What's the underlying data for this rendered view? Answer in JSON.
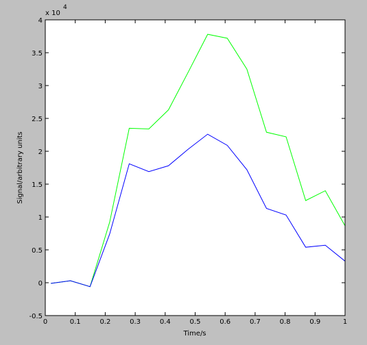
{
  "chart_data": {
    "type": "line",
    "xlabel": "Time/s",
    "ylabel": "Signal/arbitrary units",
    "y_multiplier": {
      "base": "x 10",
      "exponent": "4"
    },
    "x": [
      0.0185,
      0.0839,
      0.1493,
      0.2147,
      0.2801,
      0.3455,
      0.4109,
      0.4763,
      0.5417,
      0.6071,
      0.6725,
      0.7379,
      0.8033,
      0.8687,
      0.9341,
      0.9995
    ],
    "series": [
      {
        "color": "#00ff00",
        "values": [
          -0.01,
          0.03,
          -0.06,
          0.92,
          2.35,
          2.34,
          2.63,
          3.2,
          3.78,
          3.72,
          3.25,
          2.29,
          2.22,
          1.25,
          1.4,
          0.87
        ]
      },
      {
        "color": "#0000ff",
        "values": [
          -0.01,
          0.03,
          -0.06,
          0.74,
          1.81,
          1.69,
          1.78,
          2.03,
          2.26,
          2.09,
          1.72,
          1.13,
          1.03,
          0.54,
          0.57,
          0.33
        ]
      }
    ],
    "xlim": [
      0,
      1
    ],
    "xticks": [
      0,
      0.1,
      0.2,
      0.3,
      0.4,
      0.5,
      0.6,
      0.7,
      0.8,
      0.9,
      1
    ],
    "ylim": [
      -0.5,
      4
    ],
    "yticks": [
      -0.5,
      0,
      0.5,
      1,
      1.5,
      2,
      2.5,
      3,
      3.5,
      4
    ]
  }
}
